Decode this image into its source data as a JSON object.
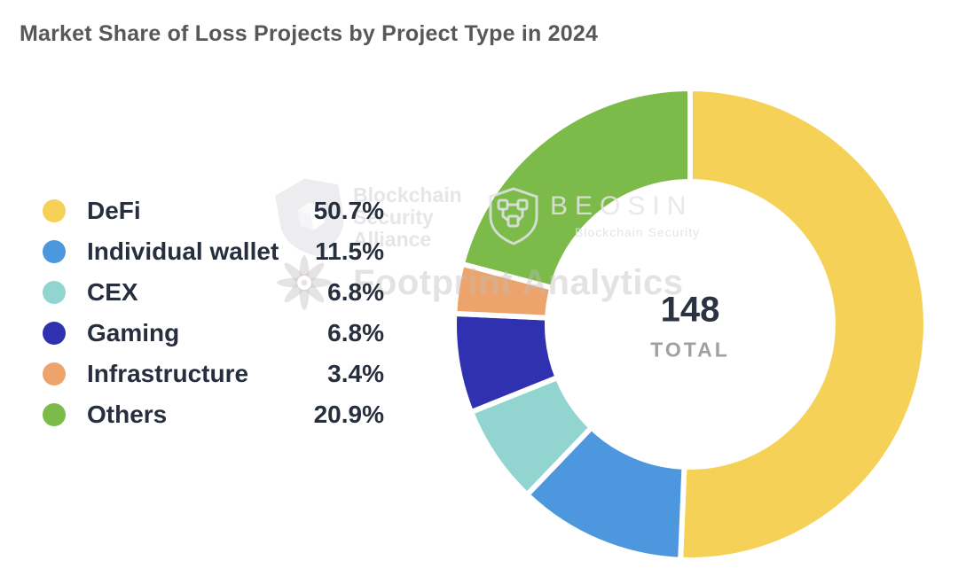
{
  "title": "Market Share of Loss Projects by Project Type in 2024",
  "chart_data": {
    "type": "pie",
    "subtype": "donut",
    "title": "Market Share of Loss Projects by Project Type in 2024",
    "categories": [
      "DeFi",
      "Individual wallet",
      "CEX",
      "Gaming",
      "Infrastructure",
      "Others"
    ],
    "values": [
      50.7,
      11.5,
      6.8,
      6.8,
      3.4,
      20.9
    ],
    "unit": "%",
    "colors": [
      "#F5D158",
      "#4D97DE",
      "#92D5D0",
      "#3031B0",
      "#EDA46C",
      "#7CBB4A"
    ],
    "center_total": "148",
    "center_label": "TOTAL",
    "start_angle_deg": 0,
    "direction": "clockwise",
    "legend_position": "left",
    "slice_gap_color": "#FFFFFF"
  },
  "legend": {
    "items": [
      {
        "label": "DeFi",
        "value": "50.7%",
        "color": "#F5D158"
      },
      {
        "label": "Individual wallet",
        "value": "11.5%",
        "color": "#4D97DE"
      },
      {
        "label": "CEX",
        "value": "6.8%",
        "color": "#92D5D0"
      },
      {
        "label": "Gaming",
        "value": "6.8%",
        "color": "#3031B0"
      },
      {
        "label": "Infrastructure",
        "value": "3.4%",
        "color": "#EDA46C"
      },
      {
        "label": "Others",
        "value": "20.9%",
        "color": "#7CBB4A"
      }
    ]
  },
  "center": {
    "value": "148",
    "label": "TOTAL"
  },
  "watermarks": {
    "alliance": {
      "line1": "Blockchain",
      "line2": "Security",
      "line3": "Alliance"
    },
    "beosin": {
      "name": "BEOSIN",
      "subtitle": "Blockchain Security"
    },
    "footprint": {
      "text": "Footprint Analytics"
    }
  },
  "colors": {
    "background": "#FFFFFF",
    "title_text": "#58585A",
    "legend_text": "#272E3E",
    "total_value_text": "#2B3240",
    "total_label_text": "#9FA0A4"
  }
}
